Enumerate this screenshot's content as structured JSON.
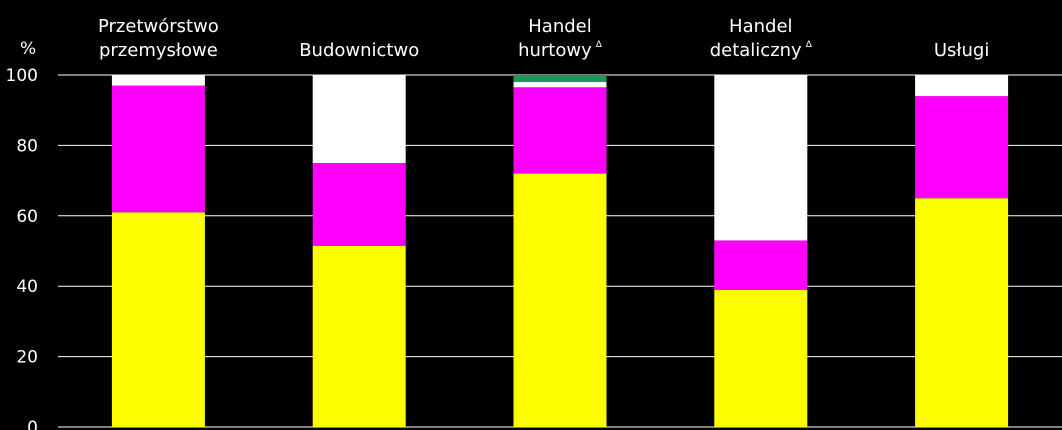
{
  "chart_data": {
    "type": "bar",
    "stacked": true,
    "ylabel": "%",
    "ylim": [
      0,
      100
    ],
    "yticks": [
      0,
      20,
      40,
      60,
      80,
      100
    ],
    "grid": true,
    "categories": [
      {
        "lines": [
          "Przetwórstwo",
          "przemysłowe"
        ],
        "mark": ""
      },
      {
        "lines": [
          "Budownictwo"
        ],
        "mark": ""
      },
      {
        "lines": [
          "Handel",
          "hurtowy"
        ],
        "mark": "Δ"
      },
      {
        "lines": [
          "Handel",
          "detaliczny"
        ],
        "mark": "Δ"
      },
      {
        "lines": [
          "Usługi"
        ],
        "mark": ""
      }
    ],
    "series": [
      {
        "color": "#ffff00",
        "values": [
          61,
          51.5,
          72,
          39,
          65
        ]
      },
      {
        "color": "#ff00ff",
        "values": [
          36,
          23.5,
          24.5,
          14,
          29
        ]
      },
      {
        "color": "#ffffff",
        "values": [
          3,
          25,
          1.5,
          47,
          6
        ]
      },
      {
        "color": "#1a9a5a",
        "values": [
          0,
          0,
          2,
          0,
          0
        ]
      }
    ]
  }
}
